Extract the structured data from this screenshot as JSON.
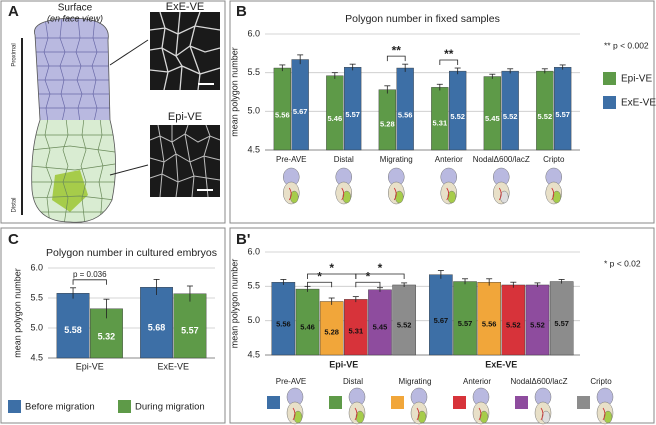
{
  "panel_labels": [
    "A",
    "B",
    "B'",
    "C"
  ],
  "panel_a": {
    "title": "Surface",
    "subtitle": "(en face view)",
    "proximal": "Proximal",
    "distal": "Distal",
    "top_image": "ExE-VE",
    "bottom_image": "Epi-VE"
  },
  "chart_data": [
    {
      "type": "bar",
      "title": "Polygon number in fixed samples",
      "y_label": "mean polygon number",
      "categories": [
        "Pre-AVE",
        "Distal",
        "Migrating",
        "Anterior",
        "NodalΔ600/lacZ",
        "Cripto"
      ],
      "series": [
        {
          "name": "Epi-VE",
          "color": "#5e9a48",
          "values": [
            5.56,
            5.46,
            5.28,
            5.31,
            5.45,
            5.52
          ],
          "errors": [
            0.04,
            0.04,
            0.05,
            0.04,
            0.03,
            0.03
          ]
        },
        {
          "name": "ExE-VE",
          "color": "#3d6fa6",
          "values": [
            5.67,
            5.57,
            5.56,
            5.52,
            5.52,
            5.57
          ],
          "errors": [
            0.06,
            0.04,
            0.05,
            0.04,
            0.03,
            0.03
          ]
        }
      ],
      "ylim": [
        4.5,
        6.0
      ],
      "yticks": [
        4.5,
        {
          "value": 5,
          "label": "5.0"
        },
        5.5,
        {
          "value": 6,
          "label": "6.0"
        }
      ],
      "grid": true,
      "legend": "right",
      "annotation": "** p < 0.002",
      "significance": [
        "**",
        "**"
      ]
    },
    {
      "type": "bar",
      "y_label": "mean polygon number",
      "categories": [
        "Epi-VE",
        "ExE-VE"
      ],
      "series": [
        {
          "name": "Pre-AVE",
          "color": "#3d6fa6",
          "values": [
            5.56,
            5.67
          ],
          "errors": [
            0.04,
            0.06
          ]
        },
        {
          "name": "Distal",
          "color": "#5e9a48",
          "values": [
            5.46,
            5.57
          ],
          "errors": [
            0.04,
            0.04
          ]
        },
        {
          "name": "Migrating",
          "color": "#f1a63a",
          "values": [
            5.28,
            5.56
          ],
          "errors": [
            0.05,
            0.05
          ]
        },
        {
          "name": "Anterior",
          "color": "#d7333a",
          "values": [
            5.31,
            5.52
          ],
          "errors": [
            0.04,
            0.04
          ]
        },
        {
          "name": "NodalΔ600/lacZ",
          "color": "#8e4c9e",
          "values": [
            5.45,
            5.52
          ],
          "errors": [
            0.03,
            0.03
          ]
        },
        {
          "name": "Cripto",
          "color": "#8c8c8c",
          "values": [
            5.52,
            5.57
          ],
          "errors": [
            0.03,
            0.03
          ]
        }
      ],
      "ylim": [
        4.5,
        6.0
      ],
      "yticks": [
        4.5,
        {
          "value": 5,
          "label": "5.0"
        },
        5.5,
        {
          "value": 6,
          "label": "6.0"
        }
      ],
      "grid": true,
      "legend": "bottom",
      "annotation": "* p < 0.02",
      "significance": [
        "*",
        "*",
        "*",
        "*"
      ]
    },
    {
      "type": "bar",
      "title": "Polygon number in cultured embryos",
      "y_label": "mean polygon number",
      "categories": [
        "Epi-VE",
        "ExE-VE"
      ],
      "series": [
        {
          "name": "Before migration",
          "color": "#3d6fa6",
          "values": [
            5.58,
            5.68
          ],
          "errors": [
            0.09,
            0.13
          ]
        },
        {
          "name": "During migration",
          "color": "#5e9a48",
          "values": [
            5.32,
            5.57
          ],
          "errors": [
            0.16,
            0.13
          ]
        }
      ],
      "ylim": [
        4.5,
        6.0
      ],
      "yticks": [
        4.5,
        {
          "value": 5,
          "label": "5.0"
        },
        5.5,
        {
          "value": 6,
          "label": "6.0"
        }
      ],
      "grid": true,
      "legend": "bottom",
      "significance": [
        "p = 0.036"
      ]
    }
  ]
}
